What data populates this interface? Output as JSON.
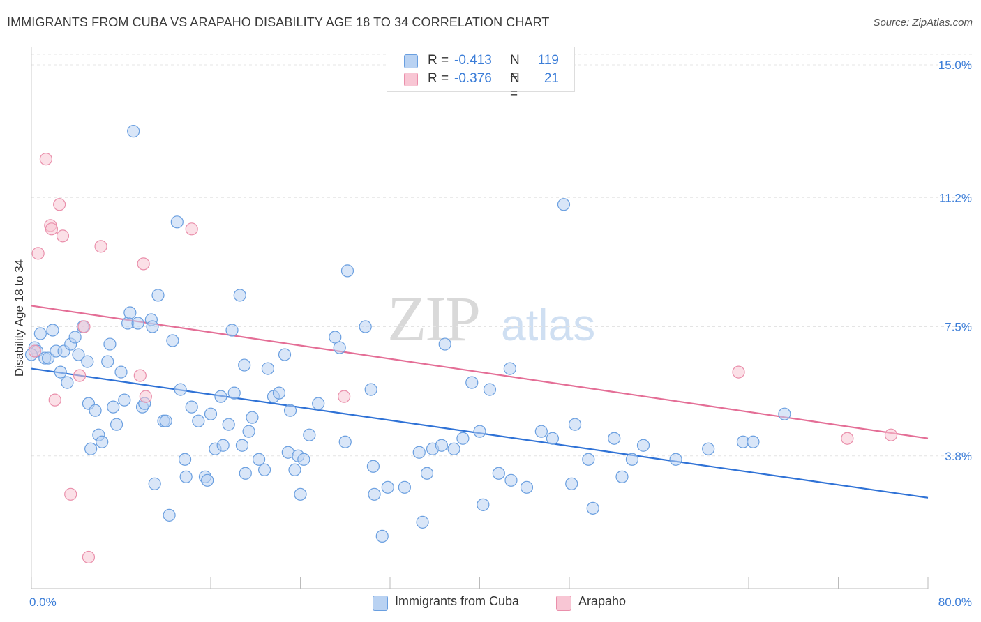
{
  "title": "IMMIGRANTS FROM CUBA VS ARAPAHO DISABILITY AGE 18 TO 34 CORRELATION CHART",
  "source": "Source: ZipAtlas.com",
  "watermark": {
    "zip": "ZIP",
    "atlas": "atlas"
  },
  "stats": {
    "cuba": {
      "r_label": "R =",
      "r_value": "-0.413",
      "n_label": "N =",
      "n_value": "119"
    },
    "arapaho": {
      "r_label": "R =",
      "r_value": "-0.376",
      "n_label": "N =",
      "n_value": "21"
    }
  },
  "legend": {
    "cuba": "Immigrants from Cuba",
    "arapaho": "Arapaho"
  },
  "colors": {
    "cuba_fill": "#b9d2f2",
    "cuba_stroke": "#6a9fe0",
    "cuba_line": "#2f72d6",
    "arapaho_fill": "#f8c6d4",
    "arapaho_stroke": "#ea8fab",
    "arapaho_line": "#e46e96",
    "tick_label": "#3b7dd8",
    "grid": "#e4e4e4"
  },
  "chart_data": {
    "type": "scatter",
    "title": "IMMIGRANTS FROM CUBA VS ARAPAHO DISABILITY AGE 18 TO 34 CORRELATION CHART",
    "xlabel": "",
    "ylabel": "Disability Age 18 to 34",
    "xlim": [
      0,
      80
    ],
    "ylim": [
      0,
      15.3
    ],
    "x_tick_labels": [
      "0.0%",
      "80.0%"
    ],
    "y_ticks": [
      3.8,
      7.5,
      11.2,
      15.0
    ],
    "y_tick_labels": [
      "3.8%",
      "7.5%",
      "11.2%",
      "15.0%"
    ],
    "grid": true,
    "legend_position": "bottom-center",
    "series": [
      {
        "name": "Immigrants from Cuba",
        "trend": {
          "x": [
            0,
            80
          ],
          "y": [
            6.3,
            2.6
          ]
        },
        "points": [
          [
            0.3,
            6.9
          ],
          [
            0.5,
            6.8
          ],
          [
            0.8,
            7.3
          ],
          [
            1.2,
            6.6
          ],
          [
            1.5,
            6.6
          ],
          [
            1.9,
            7.4
          ],
          [
            2.2,
            6.8
          ],
          [
            2.6,
            6.2
          ],
          [
            2.9,
            6.8
          ],
          [
            3.2,
            5.9
          ],
          [
            3.5,
            7.0
          ],
          [
            3.9,
            7.2
          ],
          [
            4.2,
            6.7
          ],
          [
            4.6,
            7.5
          ],
          [
            5.0,
            6.5
          ],
          [
            5.1,
            5.3
          ],
          [
            5.3,
            4.0
          ],
          [
            5.7,
            5.1
          ],
          [
            6.0,
            4.4
          ],
          [
            6.3,
            4.2
          ],
          [
            6.8,
            6.5
          ],
          [
            7.0,
            7.0
          ],
          [
            7.3,
            5.2
          ],
          [
            7.6,
            4.7
          ],
          [
            8.0,
            6.2
          ],
          [
            8.3,
            5.4
          ],
          [
            8.6,
            7.6
          ],
          [
            8.8,
            7.9
          ],
          [
            9.1,
            13.1
          ],
          [
            9.5,
            7.6
          ],
          [
            9.9,
            5.2
          ],
          [
            10.1,
            5.3
          ],
          [
            10.7,
            7.7
          ],
          [
            10.8,
            7.5
          ],
          [
            11.0,
            3.0
          ],
          [
            11.3,
            8.4
          ],
          [
            11.8,
            4.8
          ],
          [
            12.0,
            4.8
          ],
          [
            12.3,
            2.1
          ],
          [
            12.6,
            7.1
          ],
          [
            13.0,
            10.5
          ],
          [
            13.3,
            5.7
          ],
          [
            13.7,
            3.7
          ],
          [
            13.8,
            3.2
          ],
          [
            14.3,
            5.2
          ],
          [
            14.9,
            4.8
          ],
          [
            15.5,
            3.2
          ],
          [
            15.7,
            3.1
          ],
          [
            16.0,
            5.0
          ],
          [
            16.4,
            4.0
          ],
          [
            16.9,
            5.5
          ],
          [
            17.1,
            4.1
          ],
          [
            17.6,
            4.7
          ],
          [
            17.9,
            7.4
          ],
          [
            18.1,
            5.6
          ],
          [
            18.6,
            8.4
          ],
          [
            18.8,
            4.1
          ],
          [
            19.0,
            6.4
          ],
          [
            19.1,
            3.3
          ],
          [
            19.4,
            4.5
          ],
          [
            19.7,
            4.9
          ],
          [
            20.3,
            3.7
          ],
          [
            20.8,
            3.4
          ],
          [
            21.1,
            6.3
          ],
          [
            21.6,
            5.5
          ],
          [
            22.1,
            5.6
          ],
          [
            22.6,
            6.7
          ],
          [
            22.9,
            3.9
          ],
          [
            23.1,
            5.1
          ],
          [
            23.5,
            3.4
          ],
          [
            23.8,
            3.8
          ],
          [
            24.0,
            2.7
          ],
          [
            24.3,
            3.7
          ],
          [
            24.8,
            4.4
          ],
          [
            25.6,
            5.3
          ],
          [
            27.1,
            7.2
          ],
          [
            27.5,
            6.9
          ],
          [
            28.0,
            4.2
          ],
          [
            28.2,
            9.1
          ],
          [
            29.8,
            7.5
          ],
          [
            30.3,
            5.7
          ],
          [
            30.5,
            3.5
          ],
          [
            30.6,
            2.7
          ],
          [
            31.3,
            1.5
          ],
          [
            31.8,
            2.9
          ],
          [
            33.3,
            2.9
          ],
          [
            34.6,
            3.9
          ],
          [
            34.9,
            1.9
          ],
          [
            35.3,
            3.3
          ],
          [
            35.8,
            4.0
          ],
          [
            36.6,
            4.1
          ],
          [
            36.9,
            7.0
          ],
          [
            37.7,
            4.0
          ],
          [
            38.5,
            4.3
          ],
          [
            39.3,
            5.9
          ],
          [
            40.0,
            4.5
          ],
          [
            40.3,
            2.4
          ],
          [
            40.9,
            5.7
          ],
          [
            41.7,
            3.3
          ],
          [
            42.7,
            6.3
          ],
          [
            42.8,
            3.1
          ],
          [
            44.2,
            2.9
          ],
          [
            45.5,
            4.5
          ],
          [
            46.5,
            4.3
          ],
          [
            47.5,
            11.0
          ],
          [
            48.2,
            3.0
          ],
          [
            48.5,
            4.7
          ],
          [
            49.7,
            3.7
          ],
          [
            50.1,
            2.3
          ],
          [
            52.0,
            4.3
          ],
          [
            52.7,
            3.2
          ],
          [
            53.6,
            3.7
          ],
          [
            54.6,
            4.1
          ],
          [
            57.5,
            3.7
          ],
          [
            60.4,
            4.0
          ],
          [
            63.5,
            4.2
          ],
          [
            64.4,
            4.2
          ],
          [
            67.2,
            5.0
          ],
          [
            0.0,
            6.7
          ]
        ]
      },
      {
        "name": "Arapaho",
        "trend": {
          "x": [
            0,
            80
          ],
          "y": [
            8.1,
            4.3
          ]
        },
        "points": [
          [
            0.3,
            6.8
          ],
          [
            0.6,
            9.6
          ],
          [
            1.3,
            12.3
          ],
          [
            1.7,
            10.4
          ],
          [
            1.8,
            10.3
          ],
          [
            2.1,
            5.4
          ],
          [
            2.5,
            11.0
          ],
          [
            2.8,
            10.1
          ],
          [
            3.5,
            2.7
          ],
          [
            4.3,
            6.1
          ],
          [
            4.7,
            7.5
          ],
          [
            5.1,
            0.9
          ],
          [
            6.2,
            9.8
          ],
          [
            9.7,
            6.1
          ],
          [
            10.0,
            9.3
          ],
          [
            10.2,
            5.5
          ],
          [
            14.3,
            10.3
          ],
          [
            27.9,
            5.5
          ],
          [
            63.1,
            6.2
          ],
          [
            72.8,
            4.3
          ],
          [
            76.7,
            4.4
          ]
        ]
      }
    ]
  }
}
